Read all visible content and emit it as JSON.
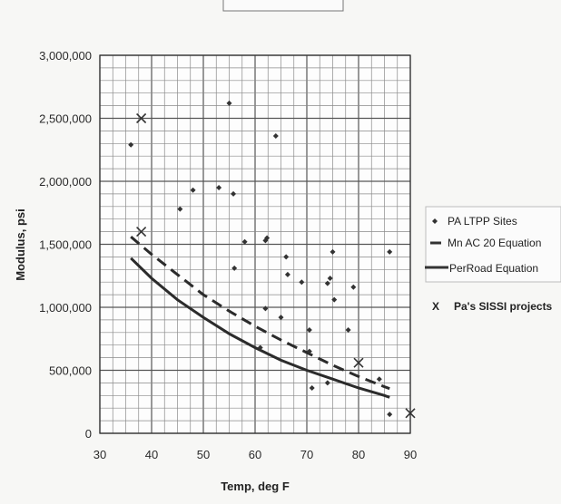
{
  "chart_data": {
    "type": "scatter",
    "xlabel": "Temp, deg F",
    "ylabel": "Modulus, psi",
    "xlim": [
      30,
      90
    ],
    "ylim": [
      0,
      3000000
    ],
    "x_ticks": [
      30,
      40,
      50,
      60,
      70,
      80,
      90
    ],
    "y_ticks": [
      0,
      500000,
      1000000,
      1500000,
      2000000,
      2500000,
      3000000
    ],
    "x_tick_labels": [
      "30",
      "40",
      "50",
      "60",
      "70",
      "80",
      "90"
    ],
    "y_tick_labels": [
      "0",
      "500,000",
      "1,000,000",
      "1,500,000",
      "2,000,000",
      "2,500,000",
      "3,000,000"
    ],
    "grid": true,
    "legend_position": "right",
    "series": [
      {
        "name": "PA LTPP Sites",
        "kind": "points",
        "marker": "diamond",
        "points": [
          [
            36,
            2290000
          ],
          [
            45.5,
            1780000
          ],
          [
            48,
            1930000
          ],
          [
            53,
            1950000
          ],
          [
            55,
            2620000
          ],
          [
            55.8,
            1900000
          ],
          [
            56,
            1310000
          ],
          [
            58,
            1520000
          ],
          [
            61,
            680000
          ],
          [
            62,
            1530000
          ],
          [
            62.3,
            1550000
          ],
          [
            62,
            990000
          ],
          [
            64,
            2360000
          ],
          [
            65,
            920000
          ],
          [
            66,
            1400000
          ],
          [
            66.3,
            1260000
          ],
          [
            69,
            1200000
          ],
          [
            70.5,
            820000
          ],
          [
            70.5,
            650000
          ],
          [
            71,
            360000
          ],
          [
            74,
            1190000
          ],
          [
            74.5,
            1230000
          ],
          [
            75,
            1440000
          ],
          [
            75.3,
            1060000
          ],
          [
            74,
            400000
          ],
          [
            78,
            820000
          ],
          [
            79,
            1160000
          ],
          [
            84,
            430000
          ],
          [
            86,
            1440000
          ],
          [
            86,
            150000
          ]
        ]
      },
      {
        "name": "Mn AC 20 Equation",
        "kind": "line",
        "dashed": true,
        "points": [
          [
            36,
            1560000
          ],
          [
            40,
            1420000
          ],
          [
            45,
            1260000
          ],
          [
            50,
            1100000
          ],
          [
            55,
            970000
          ],
          [
            60,
            850000
          ],
          [
            65,
            740000
          ],
          [
            70,
            640000
          ],
          [
            75,
            540000
          ],
          [
            80,
            450000
          ],
          [
            85,
            370000
          ],
          [
            86,
            355000
          ]
        ]
      },
      {
        "name": "PerRoad Equation",
        "kind": "line",
        "dashed": false,
        "points": [
          [
            36,
            1390000
          ],
          [
            40,
            1230000
          ],
          [
            45,
            1060000
          ],
          [
            50,
            920000
          ],
          [
            55,
            790000
          ],
          [
            60,
            680000
          ],
          [
            65,
            580000
          ],
          [
            70,
            500000
          ],
          [
            75,
            430000
          ],
          [
            80,
            360000
          ],
          [
            85,
            300000
          ],
          [
            86,
            285000
          ]
        ]
      },
      {
        "name": "Pa's  SISSI projects",
        "kind": "points",
        "marker": "x",
        "points": [
          [
            38,
            2500000
          ],
          [
            38,
            1600000
          ],
          [
            80,
            560000
          ],
          [
            90,
            160000
          ]
        ]
      }
    ]
  }
}
